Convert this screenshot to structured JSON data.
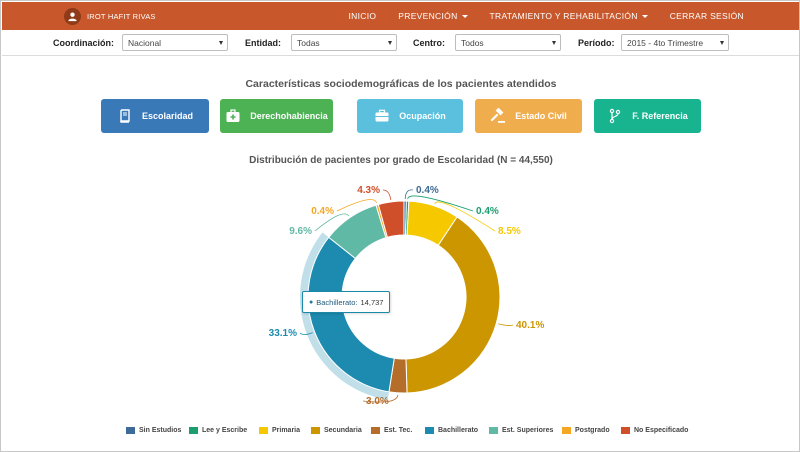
{
  "navbar": {
    "user_name": "IROT HAFIT RIVAS",
    "menu": [
      {
        "label": "INICIO",
        "dropdown": false
      },
      {
        "label": "PREVENCIÓN",
        "dropdown": true
      },
      {
        "label": "TRATAMIENTO Y REHABILITACIÓN",
        "dropdown": true
      },
      {
        "label": "CERRAR SESIÓN",
        "dropdown": false
      }
    ],
    "color": "#c8582c"
  },
  "filters": {
    "coordinacion": {
      "label": "Coordinación:",
      "value": "Nacional"
    },
    "entidad": {
      "label": "Entidad:",
      "value": "Todas"
    },
    "centro": {
      "label": "Centro:",
      "value": "Todos"
    },
    "periodo": {
      "label": "Período:",
      "value": "2015 - 4to Trimestre"
    }
  },
  "section_title": "Características sociodemográficas de los pacientes atendidos",
  "categories": [
    {
      "label": "Escolaridad",
      "icon": "book-icon",
      "color": "#3a79b8"
    },
    {
      "label": "Derechohabiencia",
      "icon": "medical-kit-icon",
      "color": "#4cb254"
    },
    {
      "label": "Ocupación",
      "icon": "briefcase-icon",
      "color": "#5bc0de"
    },
    {
      "label": "Estado Civil",
      "icon": "gavel-icon",
      "color": "#f0ad4e"
    },
    {
      "label": "F. Referencia",
      "icon": "branch-icon",
      "color": "#18b48f"
    }
  ],
  "chart_data": {
    "type": "pie",
    "title": "Distribución de pacientes por grado de Escolaridad (N = 44,550)",
    "slices": [
      {
        "name": "Sin Estudios",
        "value": 0.4,
        "label": "0.4%",
        "color": "#3d6a96"
      },
      {
        "name": "Lee y Escribe",
        "value": 0.4,
        "label": "0.4%",
        "color": "#1a9e6e"
      },
      {
        "name": "Primaria",
        "value": 8.5,
        "label": "8.5%",
        "color": "#f5c800"
      },
      {
        "name": "Secundaria",
        "value": 40.1,
        "label": "40.1%",
        "color": "#cc9600"
      },
      {
        "name": "Est. Tec.",
        "value": 3.0,
        "label": "3.0%",
        "color": "#b56d2a"
      },
      {
        "name": "Bachillerato",
        "value": 33.1,
        "label": "33.1%",
        "color": "#1d8bb0"
      },
      {
        "name": "Est. Superiores",
        "value": 9.6,
        "label": "9.6%",
        "color": "#5fb9a5"
      },
      {
        "name": "Postgrado",
        "value": 0.4,
        "label": "0.4%",
        "color": "#f5a623"
      },
      {
        "name": "No Especificado",
        "value": 4.3,
        "label": "4.3%",
        "color": "#cf4f2a"
      }
    ],
    "highlighted": "Bachillerato",
    "tooltip": {
      "name": "Bachillerato:",
      "value": "14,737"
    },
    "legend_position": "bottom"
  }
}
